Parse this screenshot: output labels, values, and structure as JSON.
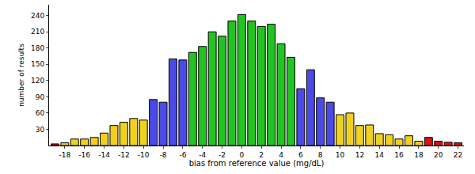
{
  "chart_data": {
    "type": "bar",
    "x_label": "bias from reference value (mg/dL)",
    "y_label": "number of results",
    "x": [
      -19,
      -18,
      -17,
      -16,
      -15,
      -14,
      -13,
      -12,
      -11,
      -10,
      -9,
      -8,
      -7,
      -6,
      -5,
      -4,
      -3,
      -2,
      -1,
      0,
      1,
      2,
      3,
      4,
      5,
      6,
      7,
      8,
      9,
      10,
      11,
      12,
      13,
      14,
      15,
      16,
      17,
      18,
      19,
      20,
      21,
      22
    ],
    "values": [
      3,
      5,
      12,
      12,
      15,
      23,
      37,
      43,
      50,
      47,
      85,
      80,
      160,
      158,
      172,
      183,
      210,
      202,
      230,
      242,
      230,
      220,
      224,
      188,
      163,
      105,
      140,
      88,
      80,
      57,
      60,
      37,
      38,
      22,
      20,
      12,
      18,
      8,
      15,
      8,
      6,
      5
    ],
    "colors": [
      "#dd1111",
      "#f0d020",
      "#f0d020",
      "#f0d020",
      "#f0d020",
      "#f0d020",
      "#f0d020",
      "#f0d020",
      "#f0d020",
      "#f0d020",
      "#4a4ae6",
      "#4a4ae6",
      "#4a4ae6",
      "#4a4ae6",
      "#22c322",
      "#22c322",
      "#22c322",
      "#22c322",
      "#22c322",
      "#22c322",
      "#22c322",
      "#22c322",
      "#22c322",
      "#22c322",
      "#22c322",
      "#4a4ae6",
      "#4a4ae6",
      "#4a4ae6",
      "#4a4ae6",
      "#f0d020",
      "#f0d020",
      "#f0d020",
      "#f0d020",
      "#f0d020",
      "#f0d020",
      "#f0d020",
      "#f0d020",
      "#f0d020",
      "#dd1111",
      "#dd1111",
      "#dd1111",
      "#dd1111"
    ],
    "xlim": [
      -19.6,
      22.6
    ],
    "xticks": [
      -18,
      -16,
      -14,
      -12,
      -10,
      -8,
      -6,
      -4,
      -2,
      0,
      2,
      4,
      6,
      8,
      10,
      12,
      14,
      16,
      18,
      20,
      22
    ],
    "ylim": [
      0,
      260
    ],
    "yticks": [
      30,
      60,
      90,
      120,
      150,
      180,
      210,
      240
    ],
    "grid": false
  }
}
